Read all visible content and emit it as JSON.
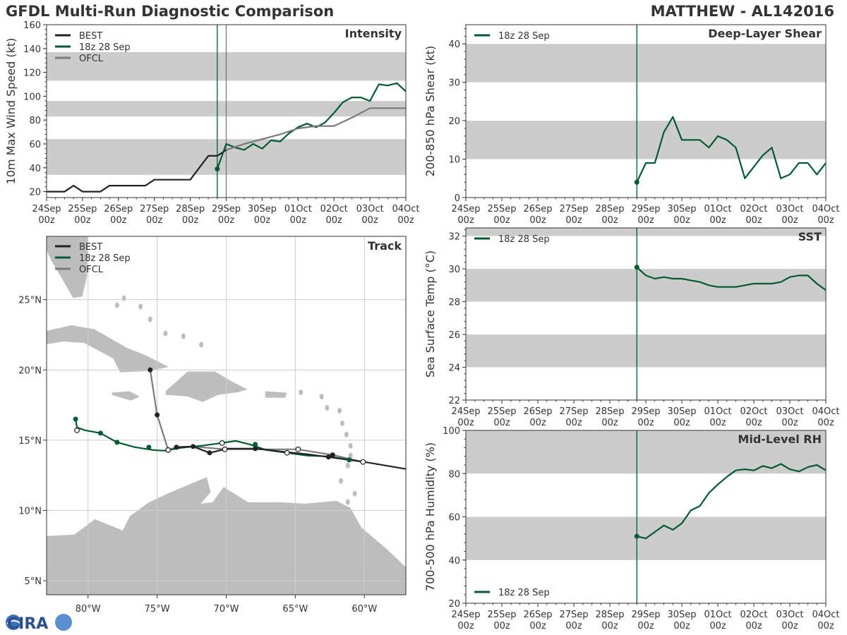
{
  "header": {
    "title_left": "GFDL Multi-Run Diagnostic Comparison",
    "title_right": "MATTHEW - AL142016"
  },
  "logo": {
    "text": "CIRA"
  },
  "colors": {
    "best": "#222222",
    "run": "#005a32",
    "ofcl": "#7a7a7a",
    "band": "#cccccc",
    "grid": "#cccccc",
    "land": "#bdbdbd"
  },
  "time_axis": {
    "ticks": [
      {
        "day": "24Sep",
        "hour": "00z"
      },
      {
        "day": "25Sep",
        "hour": "00z"
      },
      {
        "day": "26Sep",
        "hour": "00z"
      },
      {
        "day": "27Sep",
        "hour": "00z"
      },
      {
        "day": "28Sep",
        "hour": "00z"
      },
      {
        "day": "29Sep",
        "hour": "00z"
      },
      {
        "day": "30Sep",
        "hour": "00z"
      },
      {
        "day": "01Oct",
        "hour": "00z"
      },
      {
        "day": "02Oct",
        "hour": "00z"
      },
      {
        "day": "03Oct",
        "hour": "00z"
      },
      {
        "day": "04Oct",
        "hour": "00z"
      }
    ],
    "init_day": 4.75,
    "init_label": "18z 28 Sep"
  },
  "chart_data": [
    {
      "id": "intensity",
      "type": "line",
      "title": "Intensity",
      "ylabel": "10m Max Wind Speed (kt)",
      "xlim": [
        0,
        10
      ],
      "ylim": [
        15,
        160
      ],
      "yticks": [
        20,
        40,
        60,
        80,
        100,
        120,
        140,
        160
      ],
      "bands": [
        [
          34,
          64
        ],
        [
          83,
          96
        ],
        [
          113,
          137
        ]
      ],
      "vlines": [
        4.75,
        5.0
      ],
      "legend": [
        "BEST",
        "18z 28 Sep",
        "OFCL"
      ],
      "series": [
        {
          "name": "BEST",
          "color": "best",
          "x": [
            0,
            0.25,
            0.5,
            0.75,
            1,
            1.25,
            1.5,
            1.75,
            2,
            2.25,
            2.5,
            2.75,
            3,
            3.25,
            3.5,
            3.75,
            4,
            4.25,
            4.5,
            4.75,
            5.0
          ],
          "y": [
            20,
            20,
            20,
            25,
            20,
            20,
            20,
            25,
            25,
            25,
            25,
            25,
            30,
            30,
            30,
            30,
            30,
            40,
            50,
            50,
            55
          ]
        },
        {
          "name": "18z 28 Sep",
          "color": "run",
          "marker_start": true,
          "x": [
            4.75,
            5.0,
            5.25,
            5.5,
            5.75,
            6.0,
            6.25,
            6.5,
            6.75,
            7.0,
            7.25,
            7.5,
            7.75,
            8.0,
            8.25,
            8.5,
            8.75,
            9.0,
            9.25,
            9.5,
            9.75,
            10.0
          ],
          "y": [
            39,
            60,
            57,
            55,
            60,
            56,
            63,
            62,
            69,
            74,
            77,
            74,
            78,
            86,
            95,
            99,
            99,
            96,
            110,
            109,
            111,
            104
          ]
        },
        {
          "name": "OFCL",
          "color": "ofcl",
          "x": [
            5.0,
            5.5,
            6.0,
            6.5,
            7.0,
            7.5,
            8.0,
            8.5,
            9.0,
            9.5,
            10.0
          ],
          "y": [
            55,
            60,
            64,
            68,
            73,
            75,
            75,
            82,
            90,
            90,
            90
          ]
        }
      ]
    },
    {
      "id": "shear",
      "type": "line",
      "title": "Deep-Layer Shear",
      "ylabel": "200-850 hPa Shear (kt)",
      "xlim": [
        0,
        10
      ],
      "ylim": [
        0,
        45
      ],
      "yticks": [
        0,
        10,
        20,
        30,
        40
      ],
      "bands": [
        [
          10,
          20
        ],
        [
          30,
          40
        ]
      ],
      "vlines": [
        4.75
      ],
      "legend": [
        "18z 28 Sep"
      ],
      "series": [
        {
          "name": "18z 28 Sep",
          "color": "run",
          "marker_start": true,
          "x": [
            4.75,
            5.0,
            5.25,
            5.5,
            5.75,
            6.0,
            6.25,
            6.5,
            6.75,
            7.0,
            7.25,
            7.5,
            7.75,
            8.0,
            8.25,
            8.5,
            8.75,
            9.0,
            9.25,
            9.5,
            9.75,
            10.0
          ],
          "y": [
            4,
            9,
            9,
            17,
            21,
            15,
            15,
            15,
            13,
            16,
            15,
            13,
            5,
            8,
            11,
            13,
            5,
            6,
            9,
            9,
            6,
            9
          ]
        }
      ]
    },
    {
      "id": "sst",
      "type": "line",
      "title": "SST",
      "ylabel": "Sea Surface Temp (°C)",
      "xlim": [
        0,
        10
      ],
      "ylim": [
        22,
        32.5
      ],
      "yticks": [
        22,
        24,
        26,
        28,
        30,
        32
      ],
      "bands": [
        [
          24,
          26
        ],
        [
          28,
          30
        ],
        [
          32,
          32.5
        ]
      ],
      "vlines": [
        4.75
      ],
      "legend": [
        "18z 28 Sep"
      ],
      "series": [
        {
          "name": "18z 28 Sep",
          "color": "run",
          "marker_start": true,
          "x": [
            4.75,
            5.0,
            5.25,
            5.5,
            5.75,
            6.0,
            6.25,
            6.5,
            6.75,
            7.0,
            7.25,
            7.5,
            7.75,
            8.0,
            8.25,
            8.5,
            8.75,
            9.0,
            9.25,
            9.5,
            9.75,
            10.0
          ],
          "y": [
            30.1,
            29.6,
            29.4,
            29.5,
            29.4,
            29.4,
            29.3,
            29.2,
            29.0,
            28.9,
            28.9,
            28.9,
            29.0,
            29.1,
            29.1,
            29.1,
            29.2,
            29.5,
            29.6,
            29.6,
            29.1,
            28.7
          ]
        }
      ]
    },
    {
      "id": "rh",
      "type": "line",
      "title": "Mid-Level RH",
      "ylabel": "700-500 hPa Humidity (%)",
      "xlim": [
        0,
        10
      ],
      "ylim": [
        20,
        100
      ],
      "yticks": [
        20,
        40,
        60,
        80,
        100
      ],
      "bands": [
        [
          40,
          60
        ],
        [
          80,
          100
        ]
      ],
      "vlines": [
        4.75
      ],
      "legend": [
        "18z 28 Sep"
      ],
      "series": [
        {
          "name": "18z 28 Sep",
          "color": "run",
          "marker_start": true,
          "x": [
            4.75,
            5.0,
            5.25,
            5.5,
            5.75,
            6.0,
            6.25,
            6.5,
            6.75,
            7.0,
            7.25,
            7.5,
            7.75,
            8.0,
            8.25,
            8.5,
            8.75,
            9.0,
            9.25,
            9.5,
            9.75,
            10.0
          ],
          "y": [
            51,
            50,
            53,
            56,
            54,
            57,
            63,
            65,
            71,
            75,
            78.5,
            81.5,
            82,
            81.5,
            83.5,
            82.5,
            84.5,
            82,
            81,
            83,
            84,
            81.5
          ]
        }
      ]
    },
    {
      "id": "track",
      "type": "scatter",
      "title": "Track",
      "xlim": [
        -83,
        -57
      ],
      "ylim": [
        4,
        29.5
      ],
      "lon_ticks": [
        {
          "v": -80,
          "label": "80°W"
        },
        {
          "v": -75,
          "label": "75°W"
        },
        {
          "v": -70,
          "label": "70°W"
        },
        {
          "v": -65,
          "label": "65°W"
        },
        {
          "v": -60,
          "label": "60°W"
        }
      ],
      "lat_ticks": [
        {
          "v": 5,
          "label": "5°N"
        },
        {
          "v": 10,
          "label": "10°N"
        },
        {
          "v": 15,
          "label": "15°N"
        },
        {
          "v": 20,
          "label": "20°N"
        },
        {
          "v": 25,
          "label": "25°N"
        }
      ],
      "legend": [
        "BEST",
        "18z 28 Sep",
        "OFCL"
      ],
      "series": [
        {
          "name": "BEST",
          "color": "best",
          "lon": [
            -57,
            -60,
            -61.1,
            -62.6,
            -64.1,
            -65.6,
            -67.9,
            -69.9,
            -71.2,
            -72.4,
            -73.6
          ],
          "lat": [
            12.95,
            13.45,
            13.6,
            13.8,
            14.0,
            14.15,
            14.4,
            14.4,
            14.1,
            14.55,
            14.5
          ],
          "dots_lon": [
            -62.6,
            -67.9,
            -71.2,
            -72.4,
            -73.6
          ],
          "dots_lat": [
            13.8,
            14.4,
            14.1,
            14.55,
            14.5
          ]
        },
        {
          "name": "18z 28 Sep",
          "color": "run",
          "lon": [
            -61.1,
            -62.6,
            -64.1,
            -65.6,
            -67.1,
            -68.3,
            -69.3,
            -70.3,
            -71.8,
            -73.3,
            -74.5,
            -75.3,
            -76.6,
            -77.9,
            -79.1,
            -80.2,
            -80.8,
            -80.9
          ],
          "lat": [
            13.6,
            13.85,
            13.9,
            14.1,
            14.3,
            14.7,
            14.95,
            14.8,
            14.6,
            14.45,
            14.25,
            14.3,
            14.5,
            14.85,
            15.5,
            15.7,
            15.9,
            16.5
          ],
          "dots_lon": [
            -61.1,
            -67.9,
            -75.6,
            -77.9,
            -79.1,
            -80.9
          ],
          "dots_lat": [
            13.6,
            14.7,
            14.5,
            14.85,
            15.5,
            16.5
          ],
          "open_lon": [
            -65.6,
            -70.3,
            -74.2,
            -80.8
          ],
          "open_lat": [
            14.1,
            14.8,
            14.3,
            15.7
          ]
        },
        {
          "name": "OFCL",
          "color": "ofcl",
          "lon": [
            -60.1,
            -62.3,
            -64.8,
            -70.1,
            -72.4,
            -73.6,
            -74.2,
            -75.0,
            -75.5
          ],
          "lat": [
            13.45,
            13.95,
            14.35,
            14.35,
            14.55,
            14.5,
            14.3,
            16.8,
            20.0
          ],
          "dots_lon": [
            -62.3,
            -73.6,
            -75.0,
            -75.5
          ],
          "dots_lat": [
            13.95,
            14.5,
            16.8,
            20.0
          ],
          "open_lon": [
            -60.1,
            -64.8,
            -70.1,
            -74.2
          ],
          "open_lat": [
            13.45,
            14.35,
            14.35,
            14.3
          ]
        }
      ]
    }
  ]
}
